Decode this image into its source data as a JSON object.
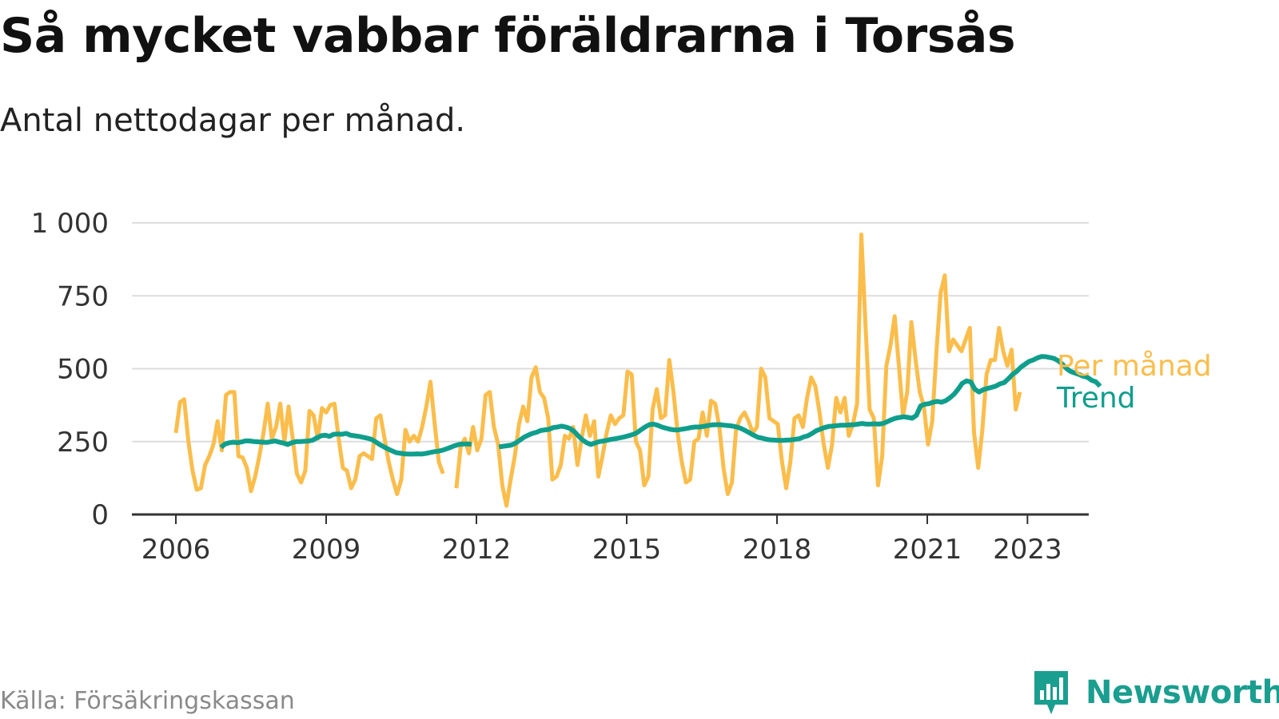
{
  "title": "Så mycket vabbar föräldrarna i Torsås",
  "subtitle": "Antal nettodagar per månad.",
  "source": "Källa: Försäkringskassan",
  "brand": "Newsworthy",
  "colors": {
    "monthly": "#fbbd4b",
    "trend": "#0f9e8c",
    "grid": "#dddddd",
    "axis": "#333333"
  },
  "chart_data": {
    "type": "line",
    "title": "Så mycket vabbar föräldrarna i Torsås",
    "subtitle": "Antal nettodagar per månad.",
    "xlabel": "",
    "ylabel": "",
    "ylim": [
      0,
      1000
    ],
    "xlim": [
      2005.5,
      2024.2
    ],
    "x_ticks": [
      2006,
      2009,
      2012,
      2015,
      2018,
      2021,
      2023
    ],
    "x_tick_labels": [
      "2006",
      "2009",
      "2012",
      "2015",
      "2018",
      "2021",
      "2023"
    ],
    "y_ticks": [
      0,
      250,
      500,
      750,
      1000
    ],
    "y_tick_labels": [
      "0",
      "250",
      "500",
      "750",
      "1 000"
    ],
    "grid": "horizontal",
    "legend": "direct labels at right end of lines",
    "series": [
      {
        "name": "Per månad",
        "segments": [
          {
            "x_start": 2006.0,
            "step": 0.08333,
            "values": [
              280,
              385,
              395,
              250,
              150,
              85,
              90,
              170,
              200,
              240,
              320,
              220,
              410,
              420,
              420,
              200,
              195,
              160,
              80,
              130,
              200,
              280,
              380,
              260,
              300,
              380,
              250,
              370,
              260,
              140,
              110,
              150,
              355,
              340,
              260,
              365,
              350,
              375,
              380,
              260,
              160,
              150,
              90,
              120,
              200,
              210,
              200,
              190,
              330,
              340,
              260,
              180,
              120,
              70,
              120,
              290,
              250,
              270,
              250,
              300,
              370,
              455,
              310,
              180,
              140
            ]
          },
          {
            "x_start": 2011.6,
            "step": 0.08333,
            "values": [
              90,
              230,
              260,
              210,
              300,
              220,
              260,
              410,
              420,
              300,
              240,
              100,
              30,
              120,
              200,
              310,
              370,
              320,
              470,
              505,
              420,
              400,
              330,
              120,
              130,
              170,
              270,
              260,
              300,
              170,
              260,
              340,
              270,
              320,
              130,
              200,
              280,
              340,
              310,
              330,
              340,
              490,
              480,
              250,
              220,
              100,
              130,
              360,
              430,
              330,
              340,
              530,
              420,
              280,
              180,
              110,
              120,
              250,
              260,
              350,
              270,
              390,
              380,
              300,
              160,
              70,
              110,
              290,
              330,
              350,
              320,
              280,
              300,
              500,
              470,
              330,
              320,
              310,
              180,
              90,
              180,
              330,
              340,
              300,
              400,
              470,
              440,
              350,
              240,
              160,
              240,
              400,
              350,
              400,
              270,
              310,
              380,
              960,
              650,
              360,
              330,
              100,
              200,
              510,
              580,
              680,
              510,
              340,
              420,
              660,
              530,
              420,
              370,
              240,
              320,
              560,
              760,
              820,
              560,
              600,
              580,
              560,
              600,
              640,
              280,
              160,
              290,
              480,
              530,
              530,
              640,
              560,
              510,
              565,
              360,
              420
            ]
          }
        ]
      },
      {
        "name": "Trend",
        "segments": [
          {
            "x_start": 2006.9,
            "step": 0.08333,
            "values": [
              230,
              242,
              246,
              248,
              246,
              249,
              253,
              252,
              250,
              249,
              248,
              247,
              250,
              252,
              248,
              245,
              240,
              246,
              250,
              250,
              251,
              252,
              255,
              263,
              270,
              272,
              268,
              275,
              276,
              275,
              278,
              272,
              270,
              268,
              265,
              262,
              258,
              250,
              240,
              232,
              225,
              218,
              212,
              210,
              208,
              207,
              207,
              208,
              207,
              209,
              212,
              215,
              217,
              220,
              225,
              230,
              236,
              240,
              242,
              242,
              241
            ]
          },
          {
            "x_start": 2012.45,
            "step": 0.08333,
            "values": [
              232,
              234,
              236,
              238,
              245,
              255,
              265,
              272,
              278,
              282,
              288,
              290,
              292,
              298,
              300,
              303,
              300,
              295,
              285,
              270,
              256,
              246,
              240,
              245,
              250,
              252,
              255,
              258,
              260,
              263,
              266,
              270,
              274,
              280,
              290,
              300,
              308,
              310,
              306,
              300,
              296,
              292,
              290,
              290,
              293,
              295,
              298,
              300,
              300,
              302,
              305,
              307,
              308,
              308,
              306,
              305,
              303,
              300,
              295,
              288,
              280,
              272,
              265,
              262,
              258,
              256,
              255,
              254,
              254,
              255,
              256,
              258,
              260,
              266,
              270,
              278,
              287,
              293,
              298,
              302,
              303,
              305,
              306,
              306,
              307,
              308,
              310,
              312,
              310,
              310,
              311,
              310,
              312,
              318,
              325,
              330,
              333,
              335,
              333,
              330,
              340,
              372,
              378,
              380,
              385,
              388,
              385,
              390,
              400,
              412,
              430,
              450,
              458,
              455,
              430,
              420,
              428,
              432,
              436,
              440,
              448,
              452,
              465,
              480,
              490,
              505,
              515,
              525,
              530,
              537,
              542,
              541,
              538,
              535,
              527,
              515,
              500,
              490,
              485,
              480,
              474,
              470,
              460,
              455,
              440
            ]
          }
        ]
      }
    ]
  }
}
